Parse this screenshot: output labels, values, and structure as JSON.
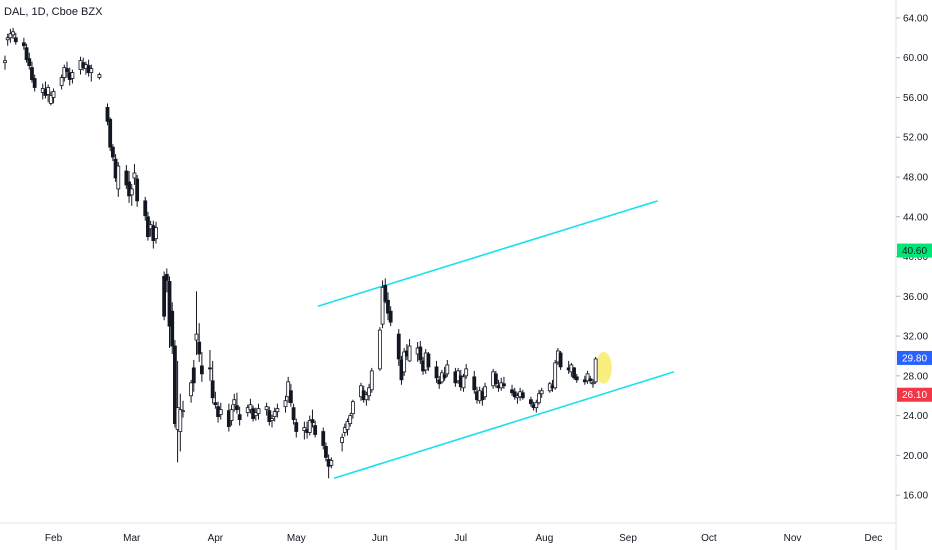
{
  "header": {
    "title": "DAL, 1D, Cboe BZX"
  },
  "chart_data": {
    "type": "candlestick",
    "symbol": "DAL",
    "interval": "1D",
    "exchange": "Cboe BZX",
    "yticks": [
      16,
      20,
      24,
      28,
      32,
      36,
      40,
      44,
      48,
      52,
      56,
      60,
      64
    ],
    "ytick_labels": [
      "16.00",
      "20.00",
      "24.00",
      "28.00",
      "32.00",
      "36.00",
      "40.00",
      "44.00",
      "48.00",
      "52.00",
      "56.00",
      "60.00",
      "64.00"
    ],
    "ylim": [
      13.2,
      65.8
    ],
    "xlim_days": [
      0,
      330
    ],
    "x_ticks": [
      {
        "label": "Feb",
        "day": 18
      },
      {
        "label": "Mar",
        "day": 47
      },
      {
        "label": "Apr",
        "day": 78
      },
      {
        "label": "May",
        "day": 108
      },
      {
        "label": "Jun",
        "day": 139
      },
      {
        "label": "Jul",
        "day": 169
      },
      {
        "label": "Aug",
        "day": 200
      },
      {
        "label": "Sep",
        "day": 231
      },
      {
        "label": "Oct",
        "day": 261
      },
      {
        "label": "Nov",
        "day": 292
      },
      {
        "label": "Dec",
        "day": 322
      }
    ],
    "price_badges": [
      {
        "value": "40.60",
        "price": 40.6,
        "color": "#00e676",
        "text": "dark"
      },
      {
        "value": "29.80",
        "price": 29.8,
        "color": "#2962ff",
        "text": "light"
      },
      {
        "value": "26.10",
        "price": 26.1,
        "color": "#f23645",
        "text": "light"
      }
    ],
    "trendlines": [
      {
        "name": "upper channel",
        "color": "#18e0f0",
        "x1": 116,
        "y1": 35.0,
        "x2": 242,
        "y2": 45.6
      },
      {
        "name": "lower channel",
        "color": "#18e0f0",
        "x1": 122,
        "y1": 17.7,
        "x2": 248,
        "y2": 28.4
      }
    ],
    "highlight": {
      "day": 222,
      "price": 28.8,
      "color": "#f7ec6a"
    },
    "candles": [
      [
        0,
        59.5,
        60.2,
        58.8,
        59.7
      ],
      [
        1,
        61.8,
        62.4,
        61.2,
        62.0
      ],
      [
        2,
        62.0,
        62.9,
        61.5,
        62.4
      ],
      [
        3,
        62.3,
        63.0,
        61.9,
        62.6
      ],
      [
        4,
        62.0,
        62.5,
        61.3,
        61.6
      ],
      [
        7,
        61.5,
        62.0,
        60.8,
        61.2
      ],
      [
        8,
        61.0,
        61.4,
        59.5,
        59.8
      ],
      [
        9,
        59.9,
        60.5,
        58.8,
        59.2
      ],
      [
        10,
        59.0,
        59.6,
        57.5,
        57.8
      ],
      [
        11,
        57.9,
        58.3,
        56.6,
        57.0
      ],
      [
        14,
        56.5,
        57.4,
        55.8,
        56.9
      ],
      [
        15,
        56.8,
        57.6,
        55.9,
        56.2
      ],
      [
        16,
        56.3,
        57.3,
        55.5,
        57.0
      ],
      [
        17,
        55.4,
        56.6,
        55.2,
        56.2
      ],
      [
        18,
        56.0,
        56.9,
        55.4,
        56.6
      ],
      [
        21,
        57.2,
        58.3,
        56.8,
        58.0
      ],
      [
        22,
        58.0,
        59.3,
        57.6,
        59.0
      ],
      [
        23,
        58.9,
        59.6,
        58.0,
        58.6
      ],
      [
        24,
        58.5,
        59.0,
        57.2,
        57.8
      ],
      [
        25,
        57.9,
        58.8,
        57.4,
        58.5
      ],
      [
        28,
        58.8,
        60.1,
        58.3,
        59.7
      ],
      [
        29,
        59.5,
        60.0,
        58.7,
        59.0
      ],
      [
        30,
        58.9,
        59.6,
        58.3,
        59.3
      ],
      [
        31,
        59.2,
        59.8,
        58.1,
        58.5
      ],
      [
        32,
        58.5,
        59.3,
        57.6,
        58.9
      ],
      [
        35,
        58.0,
        58.5,
        57.8,
        58.3
      ],
      [
        38,
        55.0,
        55.4,
        53.2,
        53.6
      ],
      [
        39,
        53.8,
        54.0,
        50.6,
        51.0
      ],
      [
        40,
        51.0,
        51.3,
        49.6,
        50.0
      ],
      [
        41,
        49.8,
        50.3,
        47.5,
        47.9
      ],
      [
        42,
        46.8,
        49.5,
        46.0,
        49.1
      ],
      [
        45,
        48.6,
        49.2,
        46.8,
        47.2
      ],
      [
        46,
        47.5,
        48.6,
        45.4,
        46.1
      ],
      [
        47,
        46.2,
        47.3,
        45.1,
        46.8
      ],
      [
        48,
        47.9,
        49.3,
        47.2,
        48.4
      ],
      [
        49,
        47.8,
        48.2,
        45.0,
        45.6
      ],
      [
        52,
        45.6,
        46.0,
        43.6,
        44.1
      ],
      [
        53,
        44.0,
        44.5,
        41.6,
        42.0
      ],
      [
        54,
        42.8,
        43.6,
        42.0,
        43.2
      ],
      [
        55,
        43.1,
        43.6,
        40.8,
        41.6
      ],
      [
        56,
        41.8,
        43.5,
        41.3,
        42.9
      ],
      [
        59,
        38.0,
        38.5,
        33.6,
        34.0
      ],
      [
        60,
        38.2,
        38.8,
        36.4,
        37.6
      ],
      [
        61,
        37.5,
        38.0,
        30.8,
        33.0
      ],
      [
        62,
        34.5,
        35.4,
        30.2,
        31.0
      ],
      [
        63,
        31.0,
        31.6,
        22.8,
        23.2
      ],
      [
        64,
        22.6,
        29.5,
        19.3,
        24.8
      ],
      [
        65,
        22.4,
        26.2,
        20.4,
        24.6
      ],
      [
        66,
        24.4,
        25.5,
        23.8,
        24.5
      ],
      [
        69,
        26.0,
        27.6,
        25.3,
        27.3
      ],
      [
        70,
        28.8,
        29.6,
        26.4,
        27.3
      ],
      [
        71,
        31.6,
        36.5,
        30.1,
        32.2
      ],
      [
        72,
        31.4,
        33.3,
        29.4,
        30.2
      ],
      [
        73,
        29.0,
        30.4,
        27.4,
        28.2
      ],
      [
        76,
        28.8,
        30.6,
        27.5,
        28.7
      ],
      [
        77,
        27.5,
        29.5,
        25.2,
        25.8
      ],
      [
        78,
        25.3,
        26.4,
        24.7,
        25.1
      ],
      [
        79,
        24.9,
        25.4,
        23.3,
        23.9
      ],
      [
        80,
        24.1,
        25.3,
        23.6,
        24.6
      ],
      [
        83,
        24.5,
        25.2,
        22.4,
        22.9
      ],
      [
        84,
        23.5,
        25.1,
        23.0,
        24.6
      ],
      [
        85,
        25.1,
        26.2,
        24.4,
        25.6
      ],
      [
        86,
        25.0,
        26.3,
        24.2,
        24.6
      ],
      [
        87,
        24.1,
        24.9,
        23.0,
        23.6
      ],
      [
        90,
        24.3,
        25.1,
        23.9,
        24.8
      ],
      [
        91,
        24.6,
        25.7,
        24.2,
        25.1
      ],
      [
        92,
        24.7,
        25.0,
        23.4,
        23.7
      ],
      [
        93,
        24.0,
        24.8,
        23.5,
        24.3
      ],
      [
        94,
        24.2,
        25.2,
        23.6,
        24.7
      ],
      [
        97,
        24.6,
        25.3,
        24.0,
        24.9
      ],
      [
        98,
        24.5,
        24.9,
        23.0,
        23.4
      ],
      [
        99,
        23.5,
        24.1,
        22.8,
        23.7
      ],
      [
        100,
        23.9,
        24.8,
        23.4,
        24.4
      ],
      [
        101,
        24.4,
        25.2,
        23.8,
        24.7
      ],
      [
        104,
        24.9,
        26.0,
        24.3,
        25.5
      ],
      [
        105,
        25.9,
        27.9,
        25.3,
        27.4
      ],
      [
        106,
        26.5,
        27.2,
        24.9,
        25.3
      ],
      [
        107,
        24.8,
        25.2,
        23.1,
        23.6
      ],
      [
        108,
        23.3,
        23.7,
        21.8,
        22.4
      ],
      [
        111,
        22.5,
        23.4,
        21.6,
        22.8
      ],
      [
        112,
        22.6,
        23.4,
        21.7,
        22.3
      ],
      [
        113,
        22.3,
        24.0,
        22.0,
        23.5
      ],
      [
        114,
        23.6,
        24.6,
        22.8,
        23.3
      ],
      [
        115,
        23.0,
        23.5,
        21.8,
        22.1
      ],
      [
        118,
        22.4,
        22.8,
        20.6,
        21.0
      ],
      [
        119,
        20.9,
        21.3,
        19.4,
        19.8
      ],
      [
        120,
        19.6,
        20.1,
        17.7,
        18.9
      ],
      [
        121,
        19.0,
        19.8,
        18.7,
        19.5
      ],
      [
        125,
        21.3,
        22.2,
        20.4,
        21.8
      ],
      [
        126,
        22.3,
        23.2,
        21.9,
        22.8
      ],
      [
        127,
        22.6,
        23.7,
        22.0,
        23.4
      ],
      [
        128,
        23.2,
        24.3,
        22.9,
        24.0
      ],
      [
        129,
        24.2,
        25.6,
        23.7,
        25.4
      ],
      [
        132,
        25.9,
        27.3,
        25.5,
        27.0
      ],
      [
        133,
        26.5,
        27.0,
        25.3,
        25.6
      ],
      [
        134,
        25.6,
        26.4,
        25.0,
        26.1
      ],
      [
        135,
        26.0,
        27.2,
        25.5,
        26.8
      ],
      [
        136,
        26.6,
        28.8,
        26.3,
        28.5
      ],
      [
        139,
        28.7,
        32.9,
        28.5,
        32.6
      ],
      [
        140,
        33.2,
        37.6,
        32.8,
        36.9
      ],
      [
        141,
        37.1,
        37.8,
        35.3,
        35.5
      ],
      [
        142,
        35.6,
        36.4,
        33.6,
        34.3
      ],
      [
        143,
        34.5,
        35.0,
        33.0,
        33.4
      ],
      [
        146,
        32.2,
        32.7,
        29.0,
        29.7
      ],
      [
        147,
        29.6,
        30.0,
        27.1,
        27.6
      ],
      [
        148,
        28.4,
        30.8,
        28.0,
        30.4
      ],
      [
        149,
        30.5,
        31.2,
        29.6,
        30.0
      ],
      [
        150,
        29.5,
        31.7,
        29.4,
        31.0
      ],
      [
        153,
        30.2,
        31.4,
        29.4,
        30.8
      ],
      [
        154,
        30.9,
        31.5,
        29.2,
        29.6
      ],
      [
        155,
        29.5,
        29.9,
        28.1,
        28.5
      ],
      [
        156,
        28.6,
        30.7,
        28.2,
        30.3
      ],
      [
        157,
        30.2,
        30.4,
        28.5,
        28.9
      ],
      [
        160,
        28.9,
        29.5,
        27.3,
        27.8
      ],
      [
        161,
        27.6,
        28.0,
        26.7,
        27.2
      ],
      [
        162,
        27.4,
        28.6,
        27.2,
        28.3
      ],
      [
        163,
        28.1,
        28.9,
        27.5,
        27.8
      ],
      [
        164,
        28.2,
        29.6,
        27.9,
        29.1
      ],
      [
        167,
        28.4,
        28.8,
        26.9,
        27.3
      ],
      [
        168,
        27.5,
        28.8,
        27.2,
        28.5
      ],
      [
        169,
        28.0,
        28.6,
        26.5,
        26.9
      ],
      [
        170,
        26.8,
        28.2,
        26.4,
        27.9
      ],
      [
        171,
        28.0,
        29.2,
        27.7,
        28.7
      ],
      [
        174,
        27.9,
        28.5,
        26.2,
        26.6
      ],
      [
        175,
        26.4,
        26.9,
        25.2,
        25.6
      ],
      [
        176,
        25.5,
        26.9,
        25.2,
        26.5
      ],
      [
        177,
        26.4,
        26.8,
        25.0,
        25.6
      ],
      [
        178,
        25.9,
        27.3,
        25.6,
        26.9
      ],
      [
        181,
        27.0,
        28.7,
        26.7,
        28.4
      ],
      [
        182,
        28.2,
        28.5,
        26.8,
        27.2
      ],
      [
        183,
        27.0,
        27.6,
        26.4,
        26.8
      ],
      [
        184,
        26.8,
        27.8,
        26.5,
        27.3
      ],
      [
        185,
        27.2,
        27.9,
        26.7,
        27.0
      ],
      [
        188,
        26.6,
        27.1,
        26.0,
        26.3
      ],
      [
        189,
        26.4,
        26.8,
        25.6,
        25.9
      ],
      [
        190,
        25.8,
        26.3,
        25.2,
        26.0
      ],
      [
        191,
        25.9,
        26.8,
        25.5,
        26.4
      ],
      [
        192,
        26.3,
        26.6,
        25.6,
        25.8
      ],
      [
        195,
        25.6,
        25.9,
        24.9,
        25.2
      ],
      [
        196,
        25.1,
        25.4,
        24.5,
        24.8
      ],
      [
        197,
        24.8,
        25.6,
        24.3,
        25.3
      ],
      [
        198,
        25.3,
        26.6,
        25.1,
        26.2
      ],
      [
        199,
        26.2,
        26.8,
        25.8,
        26.5
      ],
      [
        202,
        26.5,
        27.4,
        26.3,
        27.2
      ],
      [
        203,
        27.0,
        27.6,
        26.4,
        26.8
      ],
      [
        204,
        26.8,
        29.6,
        26.6,
        29.3
      ],
      [
        205,
        29.4,
        30.8,
        29.1,
        30.5
      ],
      [
        206,
        30.3,
        30.5,
        28.6,
        28.9
      ],
      [
        209,
        28.8,
        29.5,
        28.2,
        28.6
      ],
      [
        210,
        28.4,
        29.3,
        27.9,
        29.1
      ],
      [
        211,
        28.8,
        28.9,
        27.6,
        27.8
      ],
      [
        212,
        27.9,
        28.2,
        27.3,
        27.6
      ],
      [
        215,
        27.6,
        28.0,
        27.1,
        27.4
      ],
      [
        216,
        27.5,
        28.5,
        27.2,
        28.2
      ],
      [
        217,
        27.7,
        28.0,
        27.2,
        27.5
      ],
      [
        218,
        27.2,
        27.7,
        26.8,
        27.3
      ],
      [
        219,
        27.4,
        29.9,
        27.2,
        29.7
      ]
    ]
  }
}
